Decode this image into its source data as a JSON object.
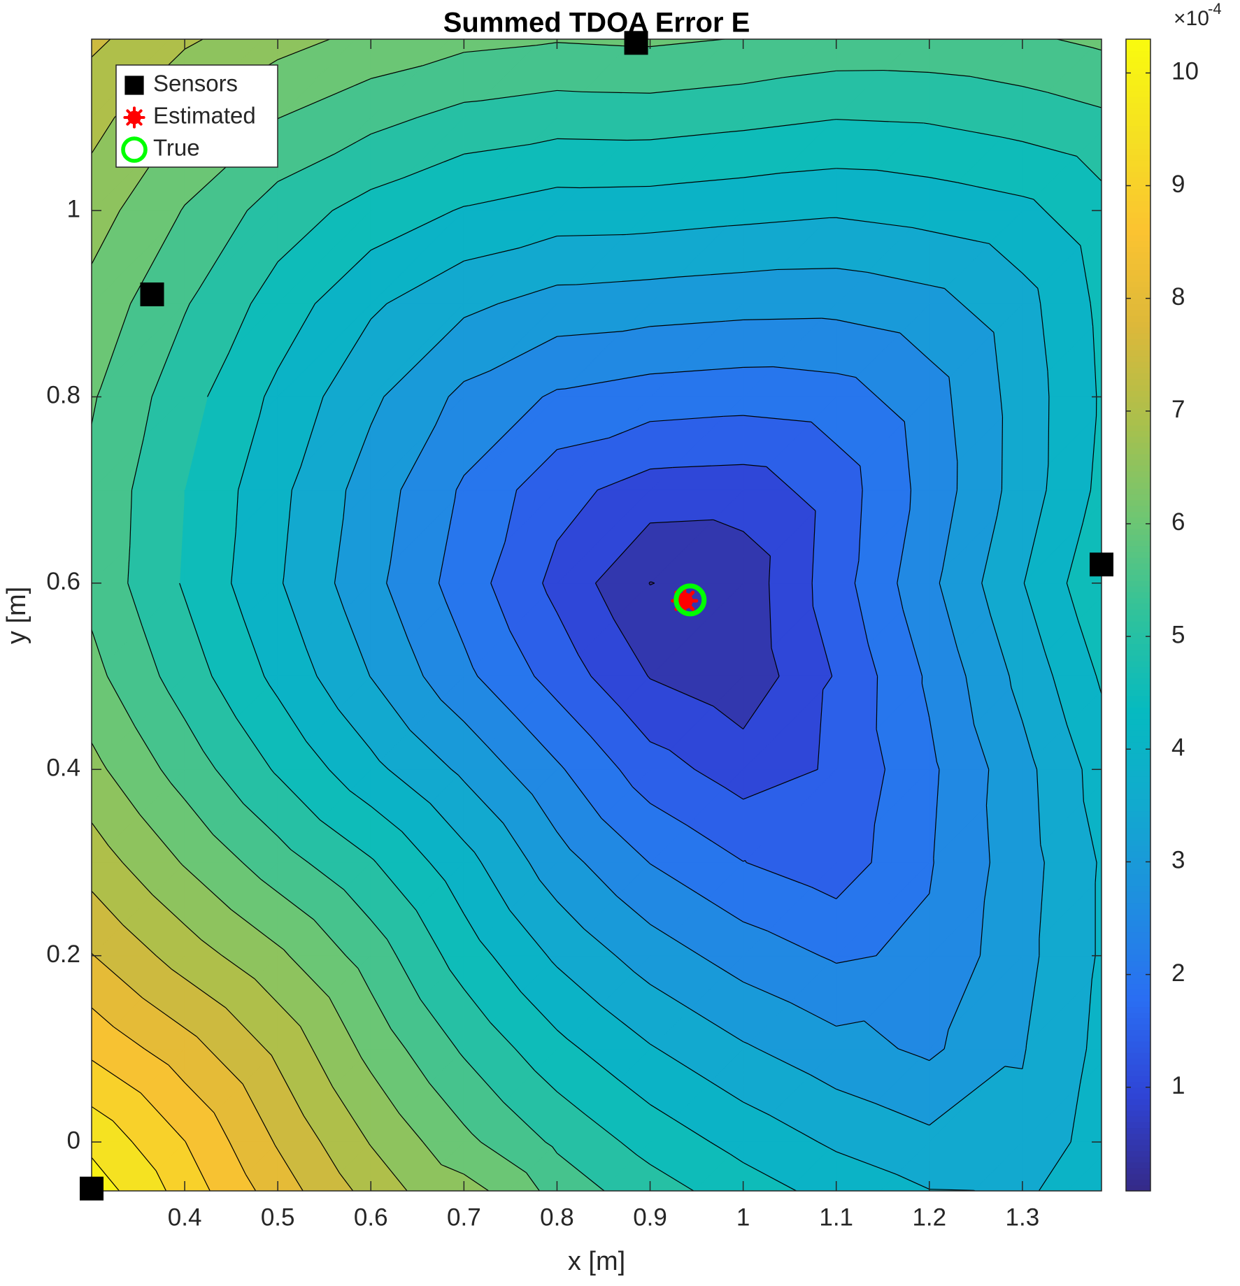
{
  "chart_data": {
    "type": "contourf",
    "title": "Summed TDOA Error E",
    "xlabel": "x [m]",
    "ylabel": "y [m]",
    "xlim": [
      0.3,
      1.385
    ],
    "ylim": [
      -0.0525,
      1.184
    ],
    "xticks": [
      0.4,
      0.5,
      0.6,
      0.7,
      0.8,
      0.9,
      1,
      1.1,
      1.2,
      1.3
    ],
    "yticks": [
      0,
      0.2,
      0.4,
      0.6,
      0.8,
      1
    ],
    "grid_x": [
      0.3,
      0.4,
      0.5,
      0.6,
      0.7,
      0.8,
      0.9,
      1.0,
      1.1,
      1.2,
      1.3,
      1.4
    ],
    "grid_y": [
      -0.1,
      0,
      0.1,
      0.2,
      0.3,
      0.4,
      0.5,
      0.6,
      0.7,
      0.8,
      0.9,
      1.0,
      1.1,
      1.2
    ],
    "z": [
      [
        10.6,
        9.54,
        8.55,
        7.65,
        7.2,
        6.16,
        5.6,
        5.1,
        4.69,
        4.36,
        4.1,
        4.5
      ],
      [
        9.88,
        9.01,
        7.95,
        6.97,
        6.13,
        5.41,
        4.81,
        4.33,
        3.92,
        3.63,
        3.61,
        4.36
      ],
      [
        8.88,
        8.21,
        7.39,
        6.34,
        5.43,
        4.65,
        4.04,
        3.56,
        3.18,
        2.91,
        3.47,
        4.24
      ],
      [
        8.02,
        7.27,
        6.6,
        5.78,
        4.76,
        3.91,
        3.26,
        2.78,
        2.44,
        2.58,
        3.35,
        4.18
      ],
      [
        7.27,
        6.46,
        5.72,
        5.05,
        4.18,
        3.21,
        2.49,
        2.01,
        1.72,
        2.46,
        3.29,
        4.18
      ],
      [
        6.64,
        5.78,
        4.94,
        4.14,
        3.4,
        2.57,
        1.72,
        1.26,
        1.56,
        2.4,
        3.34,
        4.37
      ],
      [
        6.15,
        5.26,
        4.37,
        3.49,
        2.62,
        1.8,
        0.98,
        0.66,
        1.54,
        2.58,
        3.65,
        4.72
      ],
      [
        5.85,
        4.95,
        4.05,
        3.15,
        2.26,
        1.36,
        0.49,
        0.7,
        1.78,
        2.88,
        3.98,
        5.07
      ],
      [
        5.88,
        5.0,
        4.13,
        3.27,
        2.43,
        1.67,
        1.28,
        1.24,
        1.73,
        2.69,
        3.73,
        4.78
      ],
      [
        6.05,
        5.2,
        4.38,
        3.6,
        2.88,
        2.43,
        2.26,
        2.19,
        2.28,
        2.78,
        3.72,
        4.7
      ],
      [
        6.33,
        5.54,
        4.78,
        4.08,
        3.61,
        3.31,
        3.24,
        3.17,
        3.15,
        3.33,
        3.82,
        4.75
      ],
      [
        6.73,
        5.97,
        5.27,
        4.81,
        4.46,
        4.26,
        4.24,
        4.15,
        4.07,
        4.19,
        4.37,
        4.91
      ],
      [
        7.17,
        6.48,
        6.01,
        5.65,
        5.35,
        5.22,
        5.24,
        5.14,
        5.02,
        5.06,
        5.22,
        5.45
      ],
      [
        7.68,
        7.19,
        6.8,
        6.49,
        6.28,
        6.19,
        6.24,
        6.14,
        5.98,
        5.97,
        6.06,
        6.26
      ]
    ],
    "levels": [
      0.5,
      1,
      1.5,
      2,
      2.5,
      3,
      3.5,
      4,
      4.5,
      5,
      5.5,
      6,
      6.5,
      7,
      7.5,
      8,
      8.5,
      9,
      9.5,
      10,
      10.5
    ],
    "clim": [
      0.08,
      10.3
    ],
    "cticks": [
      1,
      2,
      3,
      4,
      5,
      6,
      7,
      8,
      9,
      10
    ],
    "colorbar_multiplier": "×10",
    "colorbar_exponent": "-4",
    "colormap": [
      "#352a87",
      "#2f44d6",
      "#2a6ef2",
      "#1f8ee0",
      "#12a9cf",
      "#06bac0",
      "#2fc29c",
      "#6ec673",
      "#a9c04c",
      "#dcb83a",
      "#fbc331",
      "#f5e022",
      "#f9fb0e"
    ],
    "series": [
      {
        "name": "Sensors",
        "marker": "square",
        "color": "#000000",
        "x": [
          0.3,
          0.365,
          0.885,
          1.385
        ],
        "y": [
          -0.05,
          0.91,
          1.18,
          0.62
        ]
      },
      {
        "name": "Estimated",
        "marker": "asterisk",
        "color": "#ff0000",
        "x": [
          0.937
        ],
        "y": [
          0.581
        ]
      },
      {
        "name": "True",
        "marker": "circle",
        "color": "#00ff00",
        "x": [
          0.943
        ],
        "y": [
          0.582
        ]
      }
    ],
    "legend": "upper left"
  }
}
